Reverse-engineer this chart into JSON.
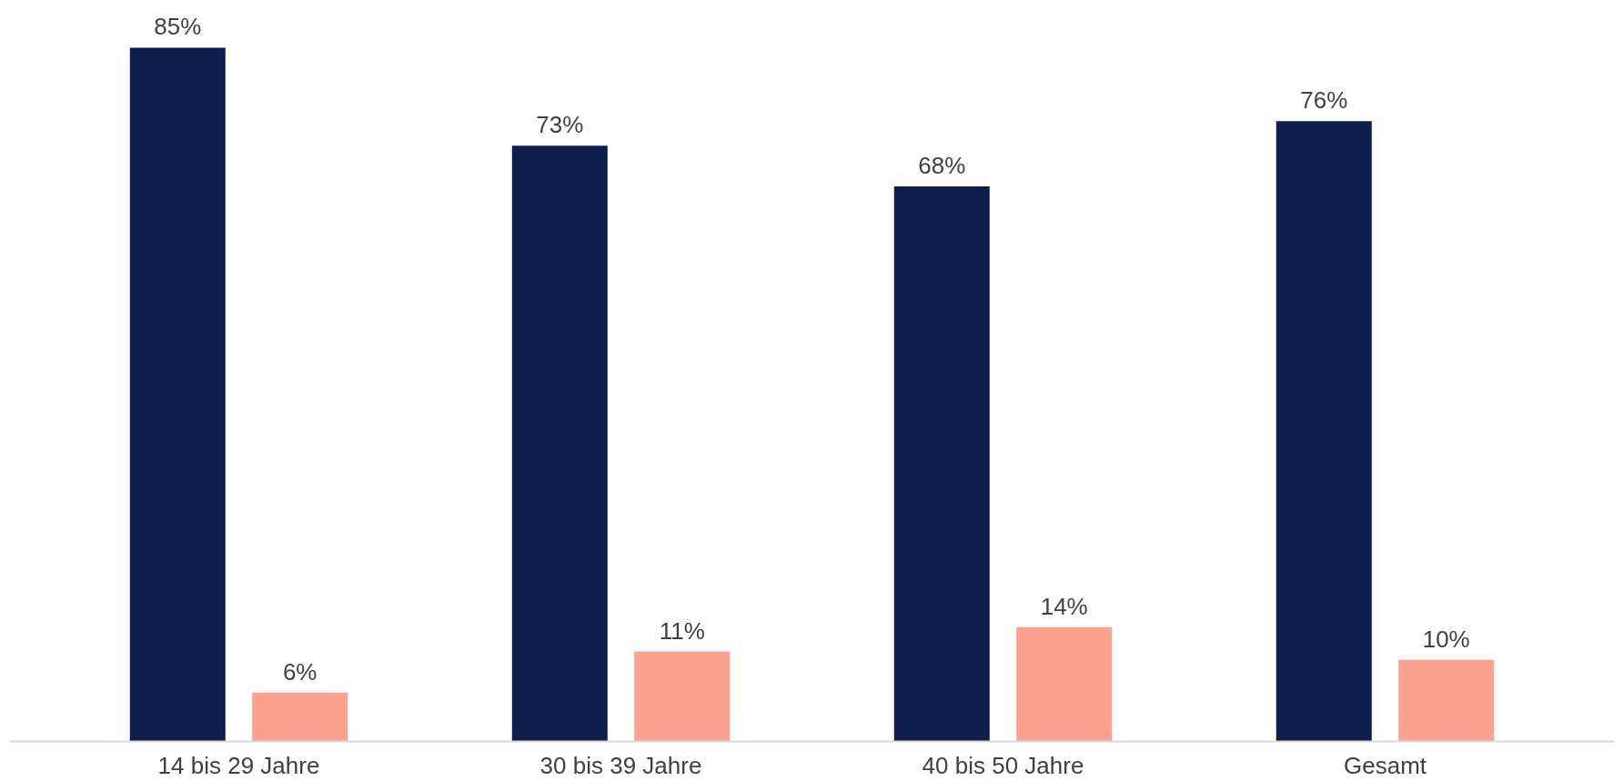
{
  "chart_data": {
    "type": "bar",
    "categories": [
      "14 bis 29 Jahre",
      "30 bis 39 Jahre",
      "40 bis 50 Jahre",
      "Gesamt"
    ],
    "series": [
      {
        "color": "#0e1f4b",
        "values": [
          85,
          73,
          68,
          76
        ],
        "value_labels": [
          "85%",
          "73%",
          "68%",
          "76%"
        ]
      },
      {
        "color": "#ffa191",
        "values": [
          6,
          11,
          14,
          10
        ],
        "value_labels": [
          "6%",
          "11%",
          "14%",
          "10%"
        ]
      }
    ],
    "grid": false
  }
}
